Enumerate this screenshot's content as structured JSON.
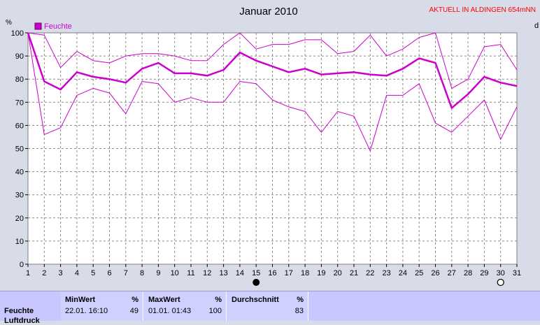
{
  "chart_data": {
    "type": "line",
    "title": "Januar 2010",
    "header_note": "AKTUELL IN ALDINGEN 654mNN",
    "legend": [
      "Feuchte"
    ],
    "ylabel": "%",
    "right_axis_label": "d",
    "x": [
      1,
      2,
      3,
      4,
      5,
      6,
      7,
      8,
      9,
      10,
      11,
      12,
      13,
      14,
      15,
      16,
      17,
      18,
      19,
      20,
      21,
      22,
      23,
      24,
      25,
      26,
      27,
      28,
      29,
      30,
      31
    ],
    "ylim": [
      0,
      100
    ],
    "yticks": [
      0,
      10,
      20,
      30,
      40,
      50,
      60,
      70,
      80,
      90,
      100
    ],
    "grid": true,
    "series": [
      {
        "name": "Feuchte",
        "style": "thick",
        "color": "#cc00cc",
        "values": [
          100,
          79,
          75.5,
          83,
          81,
          80,
          78.5,
          84.5,
          87,
          82.5,
          82.5,
          81.5,
          84,
          91.5,
          88,
          85.5,
          83,
          84.5,
          82,
          82.5,
          83,
          82,
          81.5,
          84.5,
          89,
          87,
          67.5,
          73.5,
          81,
          78.5,
          77
        ]
      },
      {
        "values": [
          100,
          99,
          85,
          92,
          88,
          87,
          90,
          91,
          91,
          90,
          88,
          88,
          95,
          100,
          93,
          95,
          95,
          97,
          97,
          91,
          92,
          99,
          90,
          93,
          98,
          100,
          76,
          80,
          94,
          95,
          84
        ]
      },
      {
        "values": [
          100,
          56,
          59,
          73,
          76,
          74,
          65,
          79,
          78,
          70,
          72,
          70,
          70,
          79,
          78,
          71,
          68,
          66,
          57,
          66,
          64,
          49,
          73,
          73,
          78,
          61,
          57,
          64,
          71,
          54,
          68
        ]
      }
    ],
    "moon_markers": [
      {
        "day": 15,
        "phase": "new-moon"
      },
      {
        "day": 30,
        "phase": "full-moon"
      }
    ]
  },
  "stats": {
    "row_label": "Feuchte",
    "row_label_2": "Luftdruck",
    "min_header": "MinWert",
    "min_unit": "%",
    "min_time": "22.01.  16:10",
    "min_value": "49",
    "max_header": "MaxWert",
    "max_unit": "%",
    "max_time": "01.01.  01:43",
    "max_value": "100",
    "avg_header": "Durchschnitt",
    "avg_unit": "%",
    "avg_value": "83"
  }
}
